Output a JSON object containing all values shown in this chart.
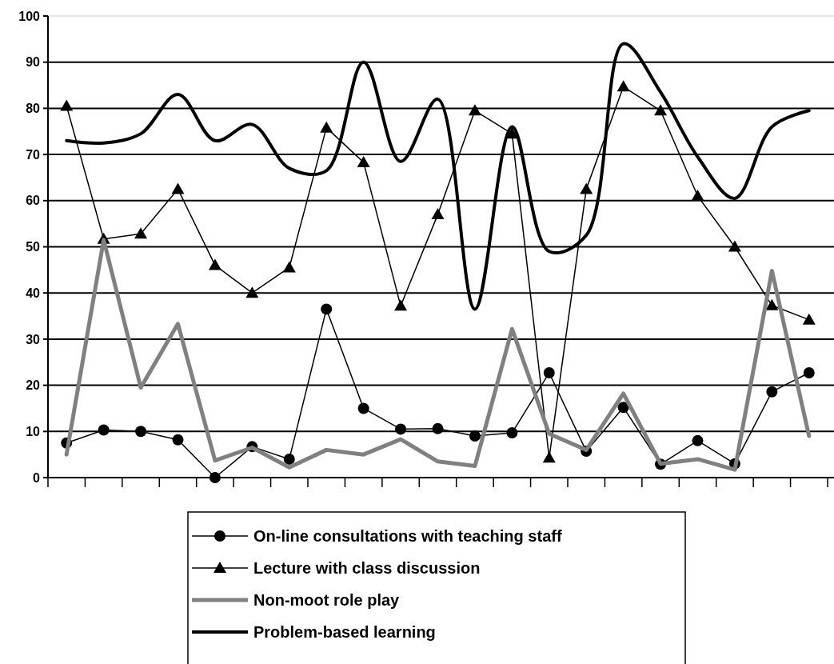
{
  "chart_data": {
    "type": "line",
    "categories": [
      null,
      null,
      null,
      null,
      null,
      null,
      null,
      null,
      null,
      null,
      null,
      null,
      null,
      null,
      null,
      null,
      null,
      null,
      null,
      null,
      null
    ],
    "ylim": [
      0,
      100
    ],
    "yticks": [
      0,
      10,
      20,
      30,
      40,
      50,
      60,
      70,
      80,
      90,
      100
    ],
    "grid": "y",
    "legend": "bottom",
    "series": [
      {
        "name": "On-line consultations with teaching staff",
        "color": "#000000",
        "marker": "circle",
        "values": [
          7.5,
          10.3,
          10,
          8.2,
          0,
          6.7,
          4,
          36.5,
          15,
          10.5,
          10.6,
          9,
          9.7,
          22.7,
          5.7,
          15.2,
          2.9,
          8,
          3,
          18.6,
          22.7
        ]
      },
      {
        "name": "Lecture with class discussion",
        "color": "#000000",
        "marker": "triangle",
        "values": [
          80.5,
          51.7,
          52.8,
          62.5,
          46,
          40,
          45.5,
          75.8,
          68.3,
          37.2,
          57,
          79.5,
          74.5,
          4.3,
          62.5,
          84.7,
          79.5,
          61,
          50,
          37.3,
          34.2
        ]
      },
      {
        "name": "Non-moot role play",
        "color": "#808080",
        "marker": "none",
        "values": [
          5,
          51.5,
          19.5,
          33.3,
          3.7,
          6.5,
          2.2,
          6,
          5,
          8.3,
          3.5,
          2.5,
          32.2,
          9.5,
          6,
          18.2,
          3,
          4,
          1.7,
          44.8,
          9
        ]
      },
      {
        "name": "Problem-based learning",
        "color": "#000000",
        "marker": "none",
        "values": [
          73,
          72.5,
          74.5,
          83,
          73,
          76.5,
          67,
          66.5,
          90,
          68.5,
          82,
          36.5,
          76,
          49,
          52.5,
          94,
          83.5,
          69.5,
          60.5,
          76,
          79.5
        ]
      }
    ]
  }
}
